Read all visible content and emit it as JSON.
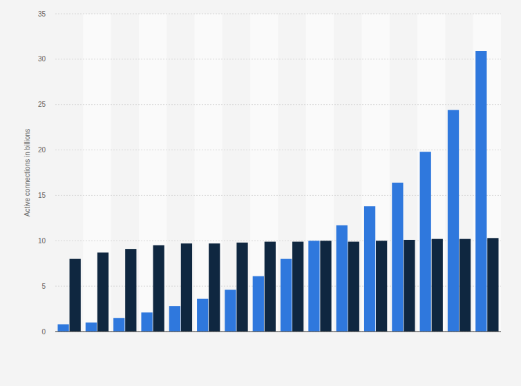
{
  "chart_data": {
    "type": "bar",
    "y_label": "Active connections in billions",
    "categories": [
      null,
      null,
      null,
      null,
      null,
      null,
      null,
      null,
      null,
      null,
      null,
      null,
      null,
      null,
      null,
      null
    ],
    "series": [
      {
        "color": "#2f78dd",
        "values": [
          0.8,
          1.0,
          1.5,
          2.1,
          2.8,
          3.6,
          4.6,
          6.1,
          8.0,
          10.0,
          11.7,
          13.8,
          16.4,
          19.8,
          24.4,
          30.9
        ]
      },
      {
        "color": "#0f2740",
        "values": [
          8.0,
          8.7,
          9.1,
          9.5,
          9.7,
          9.7,
          9.8,
          9.9,
          9.9,
          10.0,
          9.9,
          10.0,
          10.1,
          10.2,
          10.2,
          10.3
        ]
      }
    ],
    "ylim": [
      0,
      35
    ],
    "yticks": [
      0,
      5,
      10,
      15,
      20,
      25,
      30,
      35
    ],
    "grid": true,
    "tick_labels": "y"
  }
}
